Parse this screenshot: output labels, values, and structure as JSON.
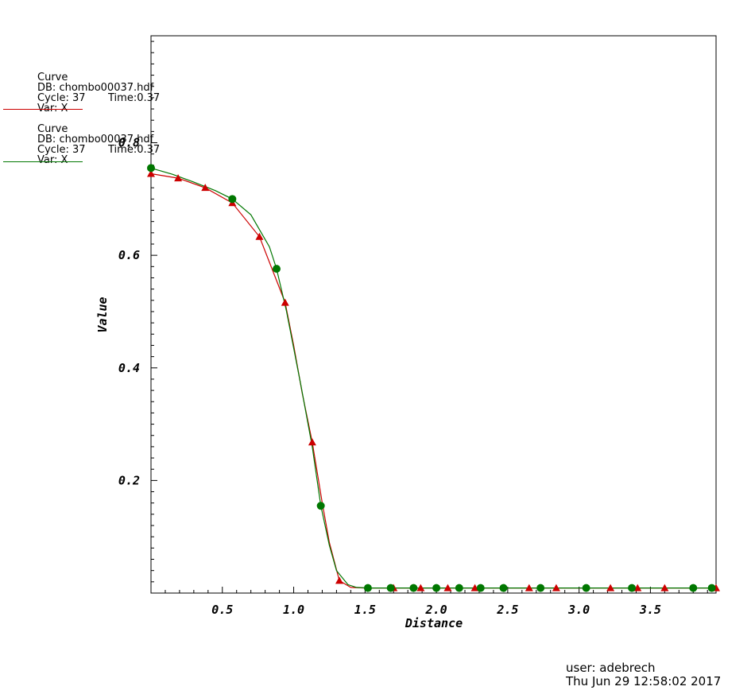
{
  "legend": [
    {
      "title": "Curve",
      "db": "DB: chombo00037.hdf",
      "cycle": "Cycle: 37",
      "time": "Time:0.37",
      "var": "Var: X",
      "color": "#cc0000"
    },
    {
      "title": "Curve",
      "db": "DB: chombo00037.hdf",
      "cycle": "Cycle: 37",
      "time": "Time:0.37",
      "var": "Var: X",
      "color": "#007700"
    }
  ],
  "user_info": {
    "user": "user: adebrech",
    "date": "Thu Jun 29 12:58:02 2017"
  },
  "chart_data": {
    "type": "line",
    "xlabel": "Distance",
    "ylabel": "Value",
    "xlim": [
      0.0,
      3.96
    ],
    "ylim": [
      0.0,
      0.99
    ],
    "x_ticks": [
      "0.5",
      "1.0",
      "1.5",
      "2.0",
      "2.5",
      "3.0",
      "3.5"
    ],
    "y_ticks": [
      "0.2",
      "0.4",
      "0.6",
      "0.8"
    ],
    "series": [
      {
        "color": "#cc0000",
        "marker": "triangle",
        "x": [
          0.0,
          0.19,
          0.38,
          0.57,
          0.76,
          0.94,
          1.0,
          1.06,
          1.13,
          1.2,
          1.25,
          1.32,
          1.4,
          1.5,
          1.7,
          1.89,
          2.08,
          2.27,
          2.46,
          2.65,
          2.84,
          3.03,
          3.22,
          3.41,
          3.6,
          3.79,
          3.96
        ],
        "y": [
          0.745,
          0.737,
          0.72,
          0.693,
          0.633,
          0.516,
          0.44,
          0.355,
          0.268,
          0.16,
          0.09,
          0.022,
          0.01,
          0.009,
          0.009,
          0.009,
          0.009,
          0.009,
          0.009,
          0.009,
          0.009,
          0.009,
          0.009,
          0.009,
          0.009,
          0.009,
          0.009
        ],
        "markers_x": [
          0.0,
          0.19,
          0.38,
          0.57,
          0.76,
          0.94,
          1.13,
          1.32,
          1.7,
          1.89,
          2.08,
          2.27,
          2.65,
          2.84,
          3.22,
          3.41,
          3.6,
          3.96
        ]
      },
      {
        "color": "#007700",
        "marker": "circle",
        "x": [
          0.0,
          0.15,
          0.3,
          0.45,
          0.57,
          0.7,
          0.83,
          0.88,
          0.95,
          1.05,
          1.13,
          1.19,
          1.25,
          1.3,
          1.38,
          1.44,
          1.52,
          1.68,
          1.84,
          2.0,
          2.16,
          2.31,
          2.47,
          2.73,
          3.05,
          3.37,
          3.8,
          3.93
        ],
        "y": [
          0.755,
          0.744,
          0.73,
          0.715,
          0.7,
          0.672,
          0.615,
          0.576,
          0.5,
          0.37,
          0.26,
          0.155,
          0.085,
          0.04,
          0.015,
          0.01,
          0.009,
          0.009,
          0.009,
          0.009,
          0.009,
          0.009,
          0.009,
          0.009,
          0.009,
          0.009,
          0.009,
          0.009
        ],
        "markers_x": [
          0.0,
          0.57,
          0.88,
          1.19,
          1.52,
          1.68,
          1.84,
          2.0,
          2.16,
          2.31,
          2.47,
          2.73,
          3.05,
          3.37,
          3.8,
          3.93
        ]
      }
    ]
  }
}
